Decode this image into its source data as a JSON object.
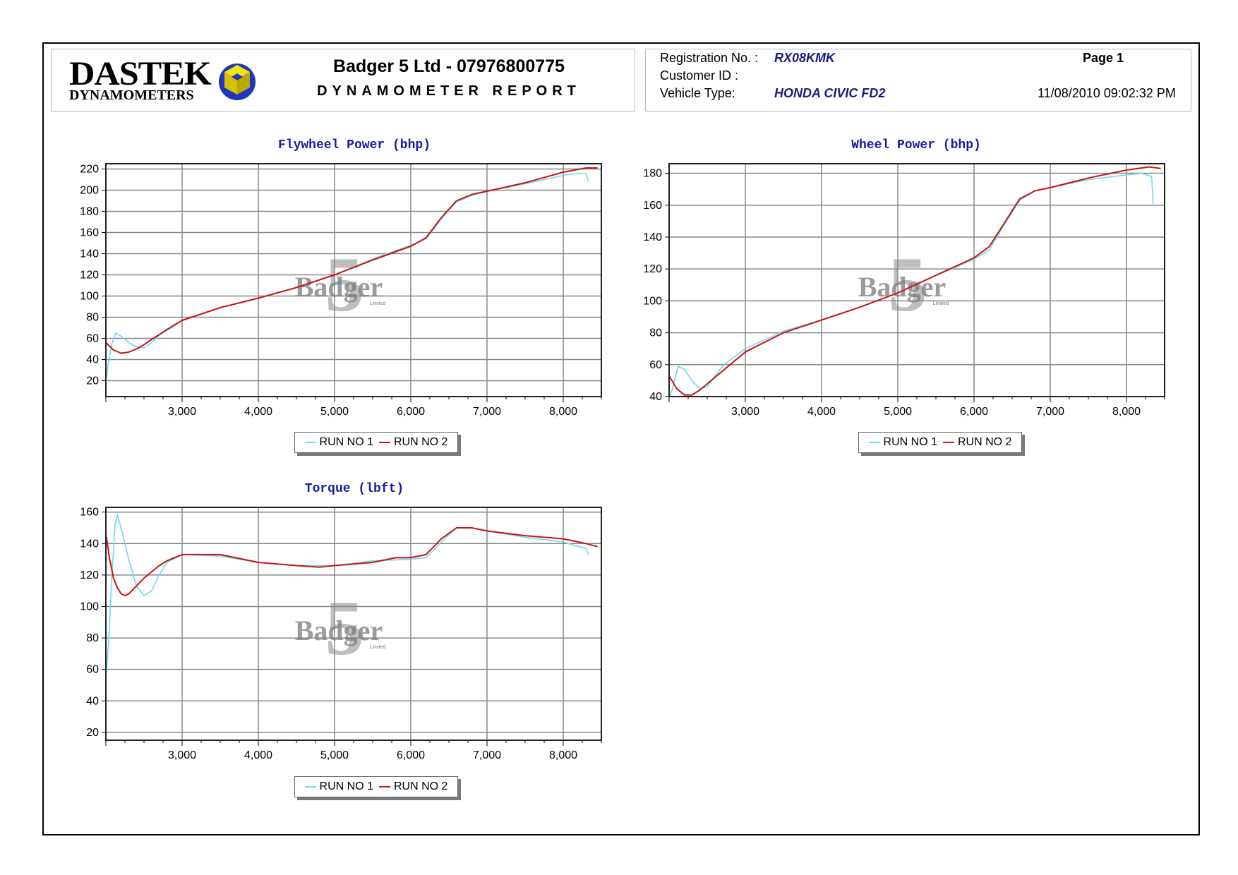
{
  "header": {
    "logo_main": "DASTEK",
    "logo_sub": "DYNAMOMETERS",
    "company": "Badger 5 Ltd - 07976800775",
    "report_title": "DYNAMOMETER REPORT",
    "registration_label": "Registration No. :",
    "registration_value": "RX08KMK",
    "customer_label": "Customer ID :",
    "vehicle_label": "Vehicle Type:",
    "vehicle_value": "HONDA CIVIC FD2",
    "page": "Page 1",
    "datetime": "11/08/2010 09:02:32 PM"
  },
  "watermark": {
    "text": "Badger",
    "numeral": "5",
    "sub": "Limited"
  },
  "colors": {
    "run1": "#6fd9e8",
    "run2": "#c81414",
    "title": "#1a1aa6",
    "value": "#1a1a80",
    "grid": "#888888"
  },
  "chart_data": [
    {
      "id": "flywheel",
      "type": "line",
      "title": "Flywheel Power (bhp)",
      "xlim": [
        2000,
        8500
      ],
      "ylim": [
        5,
        225
      ],
      "xticks": [
        3000,
        4000,
        5000,
        6000,
        7000,
        8000
      ],
      "yticks": [
        20,
        40,
        60,
        80,
        100,
        120,
        140,
        160,
        180,
        200,
        220
      ],
      "legend": "bottom-center",
      "grid": true,
      "series": [
        {
          "name": "RUN NO 1",
          "color": "#6fd9e8",
          "x": [
            2000,
            2040,
            2080,
            2130,
            2200,
            2300,
            2400,
            2500,
            2600,
            2700,
            2800,
            3000,
            3500,
            4000,
            4500,
            5000,
            5500,
            6000,
            6200,
            6400,
            6600,
            6800,
            7000,
            7500,
            8000,
            8200,
            8300,
            8330
          ],
          "y": [
            20,
            40,
            55,
            65,
            62,
            56,
            52,
            51,
            56,
            63,
            69,
            77,
            89,
            98,
            108,
            120,
            135,
            148,
            154,
            173,
            189,
            195,
            199,
            206,
            214,
            216,
            216,
            208
          ]
        },
        {
          "name": "RUN NO 2",
          "color": "#c81414",
          "x": [
            2000,
            2100,
            2200,
            2300,
            2400,
            2500,
            2600,
            2800,
            3000,
            3500,
            4000,
            4500,
            5000,
            5500,
            6000,
            6200,
            6400,
            6600,
            6800,
            7000,
            7500,
            8000,
            8300,
            8450
          ],
          "y": [
            56,
            49,
            46,
            47,
            50,
            54,
            59,
            68,
            77,
            89,
            98,
            108,
            120,
            134,
            147,
            155,
            174,
            190,
            196,
            199,
            207,
            217,
            221,
            221
          ]
        }
      ]
    },
    {
      "id": "wheel",
      "type": "line",
      "title": "Wheel Power (bhp)",
      "xlim": [
        2000,
        8500
      ],
      "ylim": [
        40,
        186
      ],
      "xticks": [
        3000,
        4000,
        5000,
        6000,
        7000,
        8000
      ],
      "yticks": [
        40,
        60,
        80,
        100,
        120,
        140,
        160,
        180
      ],
      "legend": "bottom-center",
      "grid": true,
      "series": [
        {
          "name": "RUN NO 1",
          "color": "#6fd9e8",
          "x": [
            2000,
            2040,
            2080,
            2120,
            2200,
            2300,
            2400,
            2500,
            2600,
            2700,
            2800,
            3000,
            3500,
            4000,
            4500,
            5000,
            5500,
            6000,
            6200,
            6400,
            6600,
            6800,
            7000,
            7500,
            8000,
            8200,
            8330,
            8350
          ],
          "y": [
            40,
            44,
            52,
            59,
            57,
            50,
            45,
            46,
            53,
            59,
            63,
            70,
            81,
            88,
            96,
            105,
            116,
            126,
            132,
            148,
            163,
            169,
            171,
            176,
            179,
            180,
            178,
            161
          ]
        },
        {
          "name": "RUN NO 2",
          "color": "#c81414",
          "x": [
            2000,
            2100,
            2200,
            2300,
            2400,
            2500,
            2600,
            2800,
            3000,
            3500,
            4000,
            4500,
            5000,
            5500,
            6000,
            6200,
            6400,
            6600,
            6800,
            7000,
            7500,
            8000,
            8300,
            8450
          ],
          "y": [
            53,
            45,
            41,
            41,
            44,
            48,
            52,
            60,
            68,
            80,
            88,
            96,
            105,
            116,
            127,
            134,
            149,
            164,
            169,
            171,
            177,
            182,
            184,
            183
          ]
        }
      ]
    },
    {
      "id": "torque",
      "type": "line",
      "title": "Torque (lbft)",
      "xlim": [
        2000,
        8500
      ],
      "ylim": [
        15,
        163
      ],
      "xticks": [
        3000,
        4000,
        5000,
        6000,
        7000,
        8000
      ],
      "yticks": [
        20,
        40,
        60,
        80,
        100,
        120,
        140,
        160
      ],
      "legend": "bottom-center",
      "grid": true,
      "series": [
        {
          "name": "RUN NO 1",
          "color": "#6fd9e8",
          "x": [
            2000,
            2040,
            2080,
            2120,
            2150,
            2200,
            2250,
            2300,
            2400,
            2500,
            2600,
            2700,
            2800,
            3000,
            3500,
            4000,
            4500,
            5000,
            5500,
            6000,
            6200,
            6400,
            6600,
            6800,
            7000,
            7500,
            8000,
            8200,
            8300,
            8330
          ],
          "y": [
            55,
            80,
            120,
            152,
            158,
            150,
            140,
            130,
            113,
            107,
            110,
            120,
            128,
            133,
            132,
            128,
            126,
            126,
            129,
            130,
            131,
            141,
            150,
            150,
            148,
            144,
            141,
            138,
            137,
            133
          ]
        },
        {
          "name": "RUN NO 2",
          "color": "#c81414",
          "x": [
            2000,
            2050,
            2100,
            2150,
            2200,
            2250,
            2300,
            2400,
            2500,
            2600,
            2700,
            2800,
            3000,
            3500,
            4000,
            4500,
            4800,
            5000,
            5500,
            5800,
            6000,
            6200,
            6400,
            6600,
            6800,
            7000,
            7500,
            8000,
            8300,
            8450
          ],
          "y": [
            146,
            130,
            118,
            112,
            108,
            107,
            108,
            113,
            118,
            122,
            126,
            129,
            133,
            133,
            128,
            126,
            125,
            126,
            128,
            131,
            131,
            133,
            143,
            150,
            150,
            148,
            145,
            143,
            140,
            138
          ]
        }
      ]
    }
  ]
}
